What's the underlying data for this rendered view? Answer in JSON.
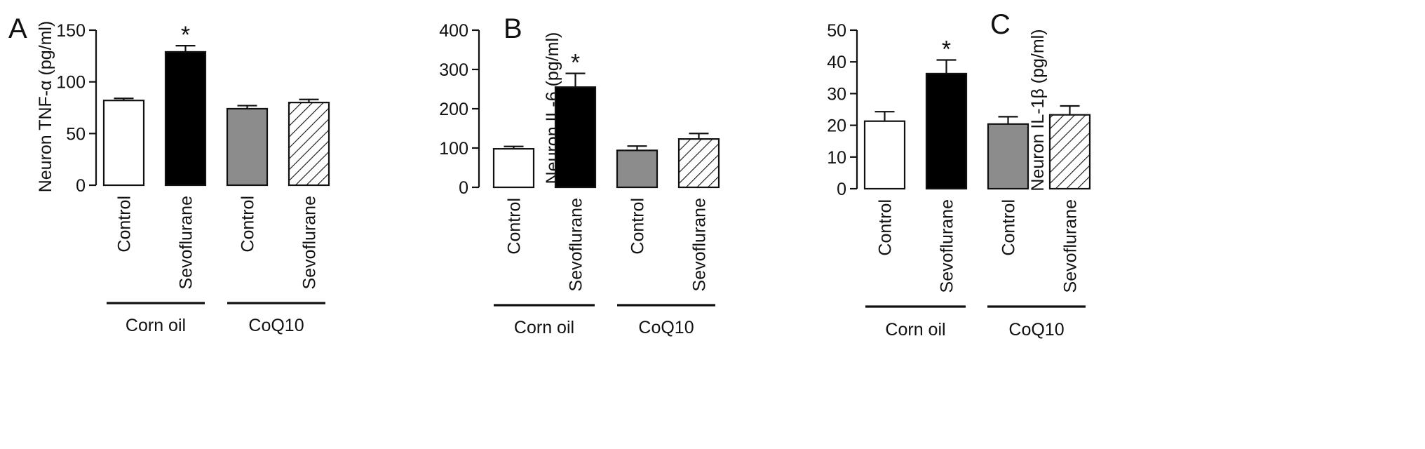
{
  "figure": {
    "panels": [
      {
        "letter": "A",
        "ylabel": "Neuron TNF-α (pg/ml)"
      },
      {
        "letter": "B",
        "ylabel": "Neuron IL-6 (pg/ml)"
      },
      {
        "letter": "C",
        "ylabel": "Neuron IL-1β (pg/ml)"
      }
    ]
  },
  "chart_data": [
    {
      "type": "bar",
      "panel": "A",
      "title": "",
      "xlabel": "",
      "ylabel": "Neuron TNF-α (pg/ml)",
      "categories": [
        "Control",
        "Sevoflurane",
        "Control",
        "Sevoflurane"
      ],
      "groups": [
        {
          "label": "Corn oil",
          "members": [
            0,
            1
          ]
        },
        {
          "label": "CoQ10",
          "members": [
            2,
            3
          ]
        }
      ],
      "values": [
        82,
        129,
        74,
        80
      ],
      "errors": [
        2,
        6,
        3,
        3
      ],
      "significance": [
        "",
        "*",
        "",
        ""
      ],
      "bar_fills": [
        "white",
        "black",
        "gray",
        "hatched"
      ],
      "colors": {
        "white": "#ffffff",
        "black": "#000000",
        "gray": "#8c8c8c"
      },
      "ylim": [
        0,
        150
      ],
      "yticks": [
        0,
        50,
        100,
        150
      ],
      "grid": false
    },
    {
      "type": "bar",
      "panel": "B",
      "title": "",
      "xlabel": "",
      "ylabel": "Neuron IL-6 (pg/ml)",
      "categories": [
        "Control",
        "Sevoflurane",
        "Control",
        "Sevoflurane"
      ],
      "groups": [
        {
          "label": "Corn oil",
          "members": [
            0,
            1
          ]
        },
        {
          "label": "CoQ10",
          "members": [
            2,
            3
          ]
        }
      ],
      "values": [
        98,
        255,
        94,
        123
      ],
      "errors": [
        6,
        35,
        11,
        14
      ],
      "significance": [
        "",
        "*",
        "",
        ""
      ],
      "bar_fills": [
        "white",
        "black",
        "gray",
        "hatched"
      ],
      "colors": {
        "white": "#ffffff",
        "black": "#000000",
        "gray": "#8c8c8c"
      },
      "ylim": [
        0,
        400
      ],
      "yticks": [
        0,
        100,
        200,
        300,
        400
      ],
      "grid": false
    },
    {
      "type": "bar",
      "panel": "C",
      "title": "",
      "xlabel": "",
      "ylabel": "Neuron IL-1β (pg/ml)",
      "categories": [
        "Control",
        "Sevoflurane",
        "Control",
        "Sevoflurane"
      ],
      "groups": [
        {
          "label": "Corn oil",
          "members": [
            0,
            1
          ]
        },
        {
          "label": "CoQ10",
          "members": [
            2,
            3
          ]
        }
      ],
      "values": [
        21.3,
        36.3,
        20.4,
        23.3
      ],
      "errors": [
        3.0,
        4.3,
        2.3,
        2.8
      ],
      "significance": [
        "",
        "*",
        "",
        ""
      ],
      "bar_fills": [
        "white",
        "black",
        "gray",
        "hatched"
      ],
      "colors": {
        "white": "#ffffff",
        "black": "#000000",
        "gray": "#8c8c8c"
      },
      "ylim": [
        0,
        50
      ],
      "yticks": [
        0,
        10,
        20,
        30,
        40,
        50
      ],
      "grid": false
    }
  ]
}
